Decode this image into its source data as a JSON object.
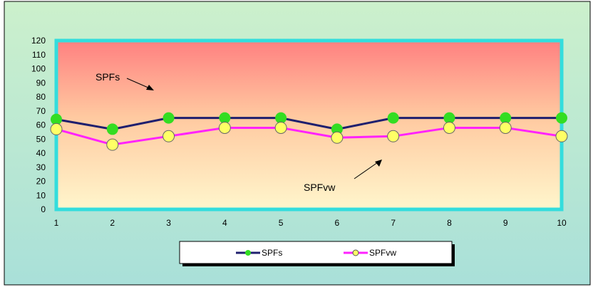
{
  "chart_data": {
    "type": "line",
    "x": [
      1,
      2,
      3,
      4,
      5,
      6,
      7,
      8,
      9,
      10
    ],
    "ylim": [
      0,
      120
    ],
    "yticks": [
      0,
      10,
      20,
      30,
      40,
      50,
      60,
      70,
      80,
      90,
      100,
      110,
      120
    ],
    "title": "",
    "xlabel": "",
    "ylabel": "",
    "series": [
      {
        "name": "SPFs",
        "values": [
          64,
          57,
          65,
          65,
          65,
          57,
          65,
          65,
          65,
          65
        ],
        "line_color": "#1f1f6e",
        "marker_color": "#33dd22"
      },
      {
        "name": "SPFvw",
        "values": [
          57,
          46,
          52,
          58,
          58,
          51,
          52,
          58,
          58,
          52
        ],
        "line_color": "#ff22ff",
        "marker_color": "#ffff66"
      }
    ],
    "annotations": [
      {
        "text": "SPFs",
        "series": "SPFs"
      },
      {
        "text": "SPFvw",
        "series": "SPFvw"
      }
    ],
    "legend_position": "bottom",
    "grid": false,
    "colors": {
      "frame_border": "#33dddd",
      "background_top": "#ccf0cc",
      "background_bottom": "#a9e0d9",
      "plot_top": "#ff8080",
      "plot_bottom": "#fff6cc"
    }
  }
}
